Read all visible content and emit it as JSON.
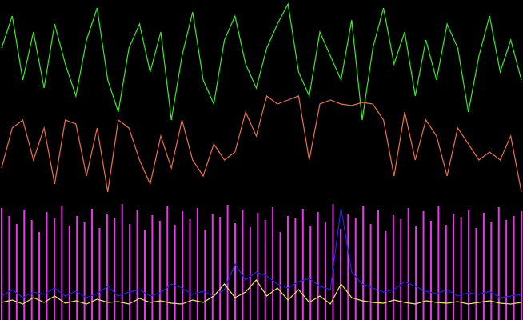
{
  "chart_data": {
    "type": "line",
    "background": "#000000",
    "ylim": [
      0,
      400
    ],
    "series": [
      {
        "color": "#33ee22",
        "style": "line",
        "values": [
          340,
          380,
          300,
          360,
          290,
          370,
          320,
          280,
          350,
          390,
          300,
          260,
          340,
          370,
          310,
          360,
          250,
          330,
          385,
          300,
          270,
          350,
          380,
          320,
          290,
          340,
          370,
          395,
          310,
          280,
          360,
          330,
          300,
          375,
          250,
          340,
          390,
          320,
          360,
          280,
          350,
          300,
          370,
          340,
          260,
          330,
          380,
          310,
          350,
          300
        ]
      },
      {
        "color": "#ee7040",
        "style": "line",
        "values": [
          190,
          240,
          250,
          200,
          240,
          170,
          250,
          245,
          180,
          240,
          160,
          250,
          240,
          200,
          170,
          230,
          190,
          250,
          200,
          180,
          220,
          200,
          210,
          260,
          230,
          280,
          270,
          275,
          280,
          200,
          270,
          275,
          270,
          268,
          272,
          270,
          250,
          180,
          260,
          200,
          250,
          230,
          180,
          240,
          220,
          200,
          210,
          200,
          230,
          160
        ]
      },
      {
        "color": "#ee33ee",
        "style": "spike",
        "values": [
          140,
          130,
          120,
          138,
          125,
          110,
          135,
          128,
          142,
          118,
          130,
          122,
          139,
          115,
          133,
          127,
          145,
          120,
          137,
          112,
          131,
          124,
          143,
          119,
          136,
          126,
          140,
          113,
          132,
          129,
          144,
          121,
          138,
          116,
          134,
          125,
          141,
          110,
          130,
          127,
          139,
          118,
          135,
          123,
          145,
          114,
          133,
          128,
          142,
          120,
          137,
          111,
          131,
          126,
          140,
          117,
          136,
          124,
          143,
          119,
          132,
          129,
          138,
          115,
          134,
          122,
          141,
          125,
          130,
          136
        ]
      },
      {
        "color": "#2222ee",
        "style": "line",
        "values": [
          30,
          38,
          28,
          35,
          32,
          40,
          30,
          36,
          28,
          33,
          42,
          30,
          35,
          38,
          30,
          34,
          45,
          40,
          32,
          36,
          30,
          38,
          70,
          50,
          60,
          55,
          45,
          40,
          48,
          52,
          42,
          38,
          140,
          60,
          45,
          40,
          35,
          38,
          48,
          42,
          36,
          33,
          38,
          30,
          34,
          32,
          36,
          28,
          30,
          32
        ]
      },
      {
        "color": "#eeee44",
        "style": "line",
        "values": [
          22,
          25,
          20,
          28,
          22,
          30,
          21,
          24,
          20,
          26,
          22,
          23,
          20,
          27,
          22,
          24,
          21,
          20,
          25,
          22,
          30,
          45,
          28,
          35,
          50,
          30,
          40,
          25,
          38,
          22,
          30,
          20,
          45,
          28,
          24,
          22,
          21,
          25,
          22,
          20,
          24,
          22,
          21,
          23,
          20,
          22,
          24,
          21,
          20,
          22
        ]
      }
    ]
  }
}
